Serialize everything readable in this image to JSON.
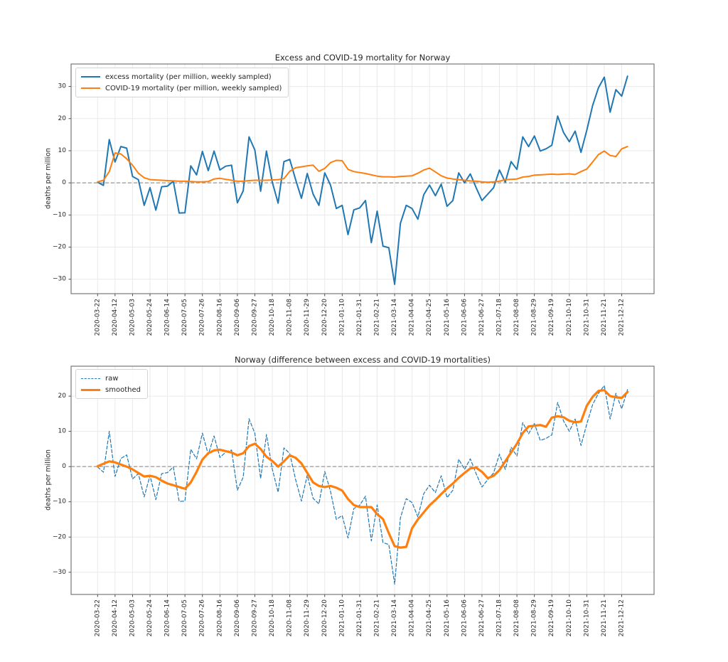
{
  "page": {
    "background": "#ffffff"
  },
  "axis": {
    "x_tick_labels": [
      "2020-03-22",
      "2020-04-12",
      "2020-05-03",
      "2020-05-24",
      "2020-06-14",
      "2020-07-05",
      "2020-07-26",
      "2020-08-16",
      "2020-09-06",
      "2020-09-27",
      "2020-10-18",
      "2020-11-08",
      "2020-11-29",
      "2020-12-20",
      "2021-01-10",
      "2021-01-31",
      "2021-02-21",
      "2021-03-14",
      "2021-04-04",
      "2021-04-25",
      "2021-05-16",
      "2021-06-06",
      "2021-06-27",
      "2021-07-18",
      "2021-08-08",
      "2021-08-29",
      "2021-09-19",
      "2021-10-10",
      "2021-10-31",
      "2021-11-21",
      "2021-12-12"
    ],
    "x_tick_positions": [
      0,
      3,
      6,
      9,
      12,
      15,
      18,
      21,
      24,
      27,
      30,
      33,
      36,
      39,
      42,
      45,
      48,
      51,
      54,
      57,
      60,
      63,
      66,
      69,
      72,
      75,
      78,
      81,
      84,
      87,
      90
    ]
  },
  "chart_data": [
    {
      "type": "line",
      "title": "Excess and COVID-19 mortality for Norway",
      "ylabel": "deaths per million",
      "xlabel": "",
      "x_unit": "weekly samples",
      "yticks": [
        30,
        20,
        10,
        0,
        -10,
        -20,
        -30
      ],
      "ylim": [
        -34.5,
        37.0
      ],
      "xlim": [
        -4.55,
        95.55
      ],
      "grid": true,
      "zero_line_dashed": true,
      "legend_position": "upper left",
      "series": [
        {
          "name": "excess mortality (per million, weekly sampled)",
          "color": "#1f77b4",
          "style": "solid",
          "width": 2,
          "values": [
            0.2,
            -0.8,
            13.5,
            6.5,
            11.3,
            10.8,
            2.0,
            1.0,
            -7.0,
            -1.5,
            -8.5,
            -1.2,
            -1.0,
            0.5,
            -9.4,
            -9.3,
            5.3,
            2.5,
            9.8,
            3.8,
            9.9,
            4.0,
            5.2,
            5.5,
            -6.2,
            -2.5,
            14.3,
            10.2,
            -2.6,
            9.9,
            0.2,
            -6.3,
            6.6,
            7.3,
            1.0,
            -4.8,
            2.9,
            -3.5,
            -7.0,
            3.1,
            -0.7,
            -8.0,
            -7.0,
            -16.1,
            -8.4,
            -7.8,
            -5.5,
            -18.6,
            -8.8,
            -19.7,
            -20.2,
            -31.6,
            -12.6,
            -7.0,
            -8.0,
            -11.3,
            -3.7,
            -0.7,
            -4.0,
            -0.4,
            -7.3,
            -5.5,
            3.1,
            0.0,
            2.8,
            -1.5,
            -5.5,
            -3.5,
            -1.5,
            4.0,
            0.2,
            6.6,
            4.2,
            14.3,
            11.3,
            14.6,
            9.9,
            10.6,
            11.7,
            20.8,
            15.7,
            12.8,
            16.1,
            9.5,
            16.4,
            24.1,
            29.6,
            32.9,
            22.0,
            29.0,
            27.0,
            33.2
          ]
        },
        {
          "name": "COVID-19 mortality (per million, weekly sampled)",
          "color": "#ff7f0e",
          "style": "solid",
          "width": 2,
          "values": [
            0.3,
            0.8,
            3.5,
            9.3,
            9.0,
            7.5,
            5.5,
            3.0,
            1.6,
            1.0,
            0.9,
            0.8,
            0.7,
            0.6,
            0.5,
            0.5,
            0.4,
            0.3,
            0.3,
            0.4,
            1.2,
            1.4,
            1.1,
            0.8,
            0.5,
            0.5,
            0.7,
            0.8,
            0.8,
            0.8,
            0.9,
            1.0,
            1.3,
            3.6,
            4.7,
            5.0,
            5.3,
            5.5,
            3.6,
            4.5,
            6.3,
            7.0,
            6.9,
            4.2,
            3.5,
            3.2,
            2.9,
            2.5,
            2.1,
            1.9,
            1.9,
            1.8,
            2.0,
            2.1,
            2.2,
            3.0,
            4.0,
            4.6,
            3.4,
            2.2,
            1.5,
            1.2,
            1.0,
            0.8,
            0.6,
            0.5,
            0.3,
            0.2,
            0.3,
            0.5,
            1.0,
            1.1,
            1.2,
            1.8,
            2.0,
            2.4,
            2.5,
            2.6,
            2.7,
            2.6,
            2.7,
            2.8,
            2.6,
            3.5,
            4.3,
            6.5,
            8.8,
            9.9,
            8.5,
            8.2,
            10.6,
            11.3
          ]
        }
      ]
    },
    {
      "type": "line",
      "title": "Norway (difference between excess and COVID-19 mortalities)",
      "ylabel": "deaths per million",
      "xlabel": "",
      "x_unit": "weekly samples",
      "yticks": [
        20,
        10,
        0,
        -10,
        -20,
        -30
      ],
      "ylim": [
        -36.3,
        28.5
      ],
      "xlim": [
        -4.55,
        95.55
      ],
      "grid": true,
      "zero_line_dashed": true,
      "legend_position": "upper left",
      "series": [
        {
          "name": "raw",
          "color": "#1f77b4",
          "style": "dashed",
          "width": 1.2,
          "values": [
            -0.1,
            -1.6,
            10.0,
            -2.8,
            2.3,
            3.3,
            -3.5,
            -2.0,
            -8.6,
            -2.5,
            -9.4,
            -2.0,
            -1.7,
            -0.1,
            -9.9,
            -9.8,
            4.9,
            2.2,
            9.5,
            3.4,
            8.7,
            2.6,
            4.1,
            4.7,
            -6.7,
            -3.0,
            13.6,
            9.4,
            -3.4,
            9.1,
            -0.7,
            -7.3,
            5.3,
            3.7,
            -3.7,
            -9.8,
            -2.4,
            -9.0,
            -10.6,
            -1.4,
            -7.0,
            -15.0,
            -13.9,
            -20.3,
            -11.9,
            -11.0,
            -8.4,
            -21.1,
            -10.9,
            -21.6,
            -22.1,
            -33.4,
            -14.6,
            -9.1,
            -10.2,
            -14.3,
            -7.7,
            -5.3,
            -7.4,
            -2.6,
            -8.8,
            -6.7,
            2.1,
            -0.8,
            2.2,
            -2.0,
            -5.8,
            -3.7,
            -1.8,
            3.5,
            -0.8,
            5.5,
            3.0,
            12.5,
            9.3,
            12.2,
            7.4,
            8.0,
            9.0,
            18.2,
            13.0,
            10.0,
            13.5,
            6.0,
            12.1,
            17.6,
            20.8,
            23.0,
            13.5,
            20.8,
            16.4,
            21.9
          ]
        },
        {
          "name": "smoothed",
          "color": "#ff7f0e",
          "style": "solid",
          "width": 3.2,
          "values": [
            0.1,
            0.8,
            1.5,
            1.2,
            0.6,
            0.0,
            -0.8,
            -1.8,
            -2.8,
            -2.6,
            -3.0,
            -4.0,
            -4.8,
            -5.3,
            -5.8,
            -6.3,
            -4.5,
            -1.5,
            2.0,
            3.8,
            4.6,
            4.8,
            4.4,
            4.0,
            3.2,
            3.8,
            5.8,
            6.5,
            5.0,
            2.8,
            1.6,
            0.0,
            1.5,
            3.2,
            2.5,
            0.9,
            -1.8,
            -4.5,
            -5.5,
            -5.8,
            -5.5,
            -6.0,
            -6.8,
            -9.2,
            -10.9,
            -11.5,
            -11.5,
            -11.5,
            -13.5,
            -14.9,
            -18.9,
            -22.6,
            -23.0,
            -22.8,
            -17.5,
            -15.0,
            -13.0,
            -11.0,
            -9.5,
            -7.8,
            -6.2,
            -4.8,
            -3.2,
            -1.8,
            -0.5,
            -0.3,
            -1.5,
            -3.3,
            -2.6,
            -1.0,
            1.5,
            4.0,
            6.5,
            9.5,
            11.4,
            11.6,
            11.8,
            11.3,
            13.9,
            14.3,
            14.0,
            13.0,
            12.6,
            12.8,
            17.3,
            19.8,
            21.5,
            21.7,
            20.0,
            19.7,
            19.5,
            21.2
          ]
        }
      ]
    }
  ]
}
